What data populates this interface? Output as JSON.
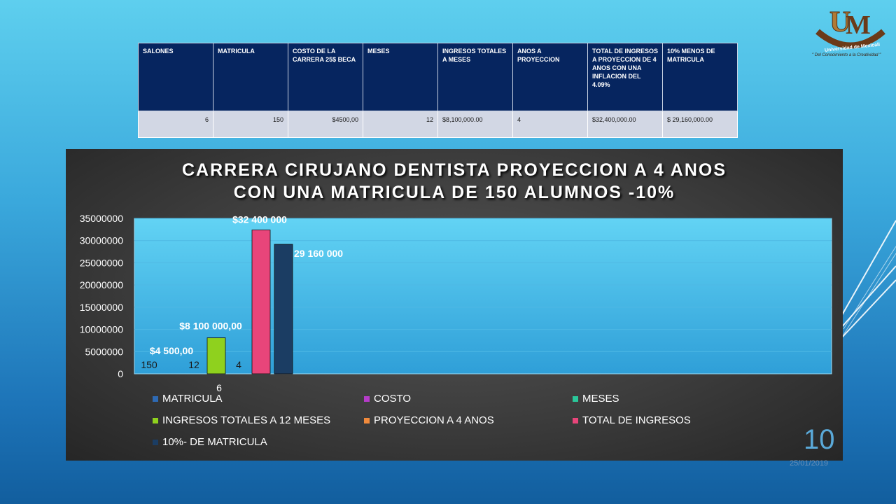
{
  "table": {
    "headers": [
      "SALONES",
      "MATRICULA",
      "COSTO DE LA CARRERA 25$ BECA",
      "MESES",
      "INGRESOS TOTALES A MESES",
      "ANOS A PROYECCION",
      "TOTAL DE INGRESOS A PROYECCION DE 4 ANOS CON UNA INFLACION DEL 4.09%",
      "10% MENOS DE MATRICULA"
    ],
    "row": [
      "6",
      "150",
      "$4500,00",
      "12",
      "$8,100,000.00",
      "4",
      "$32,400,000.00",
      "$ 29,160,000.00"
    ]
  },
  "chart_data": {
    "type": "bar",
    "title_line1": "CARRERA CIRUJANO DENTISTA PROYECCION A 4 ANOS",
    "title_line2": "CON UNA MATRICULA DE 150 ALUMNOS -10%",
    "categories": [
      "6"
    ],
    "ylim": [
      0,
      35000000
    ],
    "y_ticks": [
      "35000000",
      "30000000",
      "25000000",
      "20000000",
      "15000000",
      "10000000",
      "5000000",
      "0"
    ],
    "series": [
      {
        "name": "MATRICULA",
        "value": 150,
        "label": "150",
        "color": "#2e6ab4"
      },
      {
        "name": "COSTO",
        "value": 4500,
        "label": "$4 500,00",
        "color": "#b53cc9"
      },
      {
        "name": "MESES",
        "value": 12,
        "label": "12",
        "color": "#2ac79a"
      },
      {
        "name": "INGRESOS TOTALES A 12 MESES",
        "value": 8100000,
        "label": "$8 100 000,00",
        "color": "#8fd11e"
      },
      {
        "name": "PROYECCION A 4 ANOS",
        "value": 4,
        "label": "4",
        "color": "#f08a3c"
      },
      {
        "name": "TOTAL DE INGRESOS",
        "value": 32400000,
        "label": "$32 400 000",
        "color": "#e8457a"
      },
      {
        "name": "10%- DE MATRICULA",
        "value": 29160000,
        "label": "29 160 000",
        "color": "#1b3d63"
      }
    ],
    "legend": "bottom",
    "grid": true
  },
  "slide": {
    "number": "10",
    "date": "25/01/2019"
  },
  "logo": {
    "name": "Universidad de Mexicali",
    "motto": "\" Del Conocimiento a la Creatividad \""
  }
}
